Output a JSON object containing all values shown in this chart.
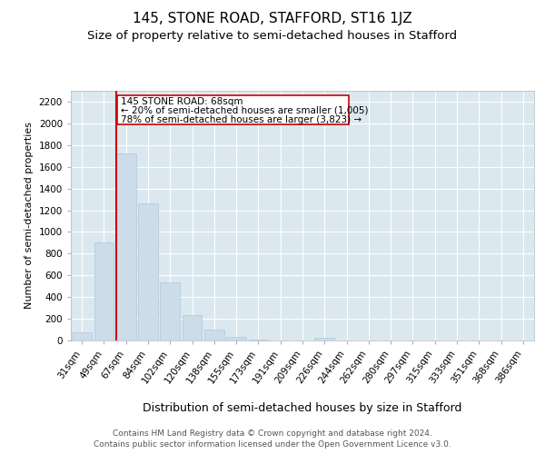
{
  "title": "145, STONE ROAD, STAFFORD, ST16 1JZ",
  "subtitle": "Size of property relative to semi-detached houses in Stafford",
  "xlabel": "Distribution of semi-detached houses by size in Stafford",
  "ylabel": "Number of semi-detached properties",
  "categories": [
    "31sqm",
    "49sqm",
    "67sqm",
    "84sqm",
    "102sqm",
    "120sqm",
    "138sqm",
    "155sqm",
    "173sqm",
    "191sqm",
    "209sqm",
    "226sqm",
    "244sqm",
    "262sqm",
    "280sqm",
    "297sqm",
    "315sqm",
    "333sqm",
    "351sqm",
    "368sqm",
    "386sqm"
  ],
  "values": [
    75,
    905,
    1720,
    1265,
    535,
    235,
    100,
    30,
    10,
    0,
    0,
    25,
    0,
    0,
    0,
    0,
    0,
    0,
    0,
    0,
    0
  ],
  "bar_color": "#ccdce8",
  "bar_edge_color": "#b0c8dc",
  "vline_color": "#cc0000",
  "annotation_text_line1": "145 STONE ROAD: 68sqm",
  "annotation_text_line2": "← 20% of semi-detached houses are smaller (1,005)",
  "annotation_text_line3": "78% of semi-detached houses are larger (3,823) →",
  "annotation_box_color": "#cc0000",
  "ylim": [
    0,
    2300
  ],
  "yticks": [
    0,
    200,
    400,
    600,
    800,
    1000,
    1200,
    1400,
    1600,
    1800,
    2000,
    2200
  ],
  "background_color": "#ffffff",
  "plot_bg_color": "#dce8f0",
  "footer_line1": "Contains HM Land Registry data © Crown copyright and database right 2024.",
  "footer_line2": "Contains public sector information licensed under the Open Government Licence v3.0.",
  "title_fontsize": 11,
  "subtitle_fontsize": 9.5,
  "xlabel_fontsize": 9,
  "ylabel_fontsize": 8,
  "tick_fontsize": 7.5,
  "footer_fontsize": 6.5
}
